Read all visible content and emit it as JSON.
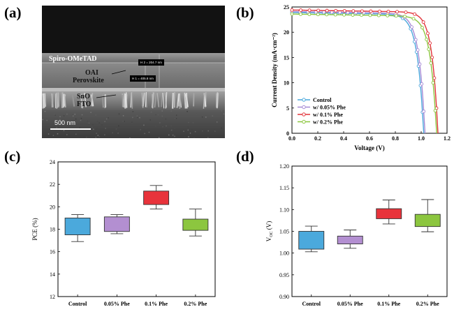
{
  "panels": {
    "a": "(a)",
    "b": "(b)",
    "c": "(c)",
    "d": "(d)"
  },
  "sem": {
    "layers": [
      "Spiro-OMeTAD",
      "OAI",
      "Perovskite",
      "SnO",
      "FTO"
    ],
    "measure_1": "H 2 = 204.7 nm",
    "measure_2": "H 1 = 405.8 nm",
    "scale_bar": "500 nm"
  },
  "chart_data": [
    {
      "id": "b",
      "type": "line",
      "xlabel": "Voltage (V)",
      "ylabel": "Current Density (mA·cm⁻²)",
      "xlim": [
        0.0,
        1.2
      ],
      "ylim": [
        0,
        25
      ],
      "xticks": [
        "0.0",
        "0.2",
        "0.4",
        "0.6",
        "0.8",
        "1.0",
        "1.2"
      ],
      "yticks": [
        "0",
        "5",
        "10",
        "15",
        "20",
        "25"
      ],
      "legend_position": "bottom-left",
      "series": [
        {
          "name": "Control",
          "color": "#4aa8dc",
          "jsc": 23.9,
          "voc": 1.02,
          "ff_knee": 0.79,
          "m": 0.048
        },
        {
          "name": "w/ 0.05% Phe",
          "color": "#a78bd6",
          "jsc": 24.1,
          "voc": 1.03,
          "ff_knee": 0.8,
          "m": 0.047
        },
        {
          "name": "w/ 0.1% Phe",
          "color": "#e2333a",
          "jsc": 24.4,
          "voc": 1.13,
          "ff_knee": 0.88,
          "m": 0.045
        },
        {
          "name": "w/ 0.2% Phe",
          "color": "#8cc63f",
          "jsc": 23.6,
          "voc": 1.12,
          "ff_knee": 0.86,
          "m": 0.048
        }
      ]
    },
    {
      "id": "c",
      "type": "box",
      "ylabel": "PCE (%)",
      "ylim": [
        12,
        24
      ],
      "yticks": [
        "12",
        "14",
        "16",
        "18",
        "20",
        "22",
        "24"
      ],
      "categories": [
        "Control",
        "0.05% Phe",
        "0.1% Phe",
        "0.2% Phe"
      ],
      "colors": [
        "#4ba9dc",
        "#b38fd1",
        "#e8333b",
        "#8cc63f"
      ],
      "boxes": [
        {
          "min": 16.9,
          "q1": 17.5,
          "q3": 19.0,
          "max": 19.3
        },
        {
          "min": 17.6,
          "q1": 17.8,
          "q3": 19.1,
          "max": 19.3
        },
        {
          "min": 19.8,
          "q1": 20.2,
          "q3": 21.4,
          "max": 21.9
        },
        {
          "min": 17.4,
          "q1": 17.9,
          "q3": 18.9,
          "max": 19.8
        }
      ]
    },
    {
      "id": "d",
      "type": "box",
      "ylabel": "V",
      "ylabel_sub": "OC",
      "ylabel_unit": " (V)",
      "ylim": [
        0.9,
        1.2
      ],
      "yticks": [
        "0.90",
        "0.95",
        "1.00",
        "1.05",
        "1.10",
        "1.15",
        "1.20"
      ],
      "categories": [
        "Control",
        "0.05% Phe",
        "0.1% Phe",
        "0.2% Phe"
      ],
      "colors": [
        "#4ba9dc",
        "#b38fd1",
        "#e8333b",
        "#8cc63f"
      ],
      "boxes": [
        {
          "min": 1.003,
          "q1": 1.009,
          "q3": 1.05,
          "max": 1.062
        },
        {
          "min": 1.011,
          "q1": 1.021,
          "q3": 1.039,
          "max": 1.053
        },
        {
          "min": 1.067,
          "q1": 1.079,
          "q3": 1.102,
          "max": 1.122
        },
        {
          "min": 1.049,
          "q1": 1.061,
          "q3": 1.089,
          "max": 1.123
        }
      ]
    }
  ]
}
